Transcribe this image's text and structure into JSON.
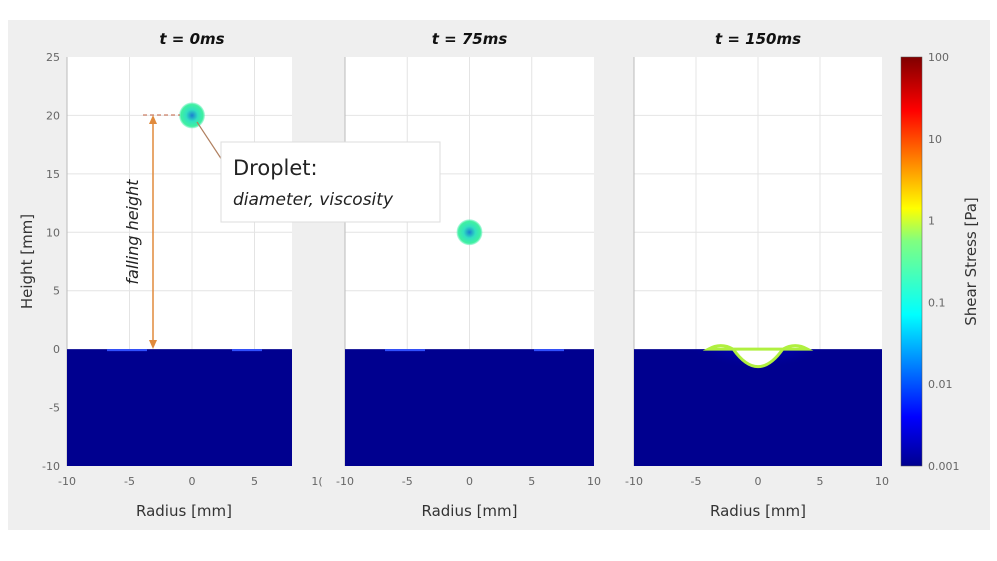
{
  "chart_data": {
    "type": "heatmap",
    "panels": [
      {
        "title": "t = 0ms",
        "droplet": {
          "x": 0,
          "y": 20
        },
        "impact": false
      },
      {
        "title": "t = 75ms",
        "droplet": {
          "x": 0,
          "y": 10
        },
        "impact": false
      },
      {
        "title": "t = 150ms",
        "droplet": null,
        "impact": true
      }
    ],
    "xlabel": "Radius [mm]",
    "ylabel": "Height [mm]",
    "xlim": [
      -10,
      10
    ],
    "ylim": [
      -10,
      25
    ],
    "xticks": [
      "-10",
      "-5",
      "0",
      "5",
      "10"
    ],
    "xticks_first_panel": [
      "-10",
      "-5",
      "0",
      "5",
      "1("
    ],
    "yticks": [
      "25",
      "20",
      "15",
      "10",
      "5",
      "0",
      "-5",
      "-10"
    ],
    "fluid_surface_height": 0,
    "grid": true,
    "colorbar": {
      "label": "Shear Stress [Pa]",
      "scale": "log",
      "colormap": "jet",
      "ticks": [
        "100",
        "10",
        "1",
        "0.1",
        "0.01",
        "0.001"
      ],
      "range": [
        0.001,
        100
      ]
    },
    "annotations": {
      "falling_height": "falling height",
      "droplet_title": "Droplet:",
      "droplet_params": "diameter, viscosity",
      "arrow_color": "#e08a3c"
    }
  },
  "colors": {
    "background": "#efefef",
    "fluid": "#00008f"
  }
}
